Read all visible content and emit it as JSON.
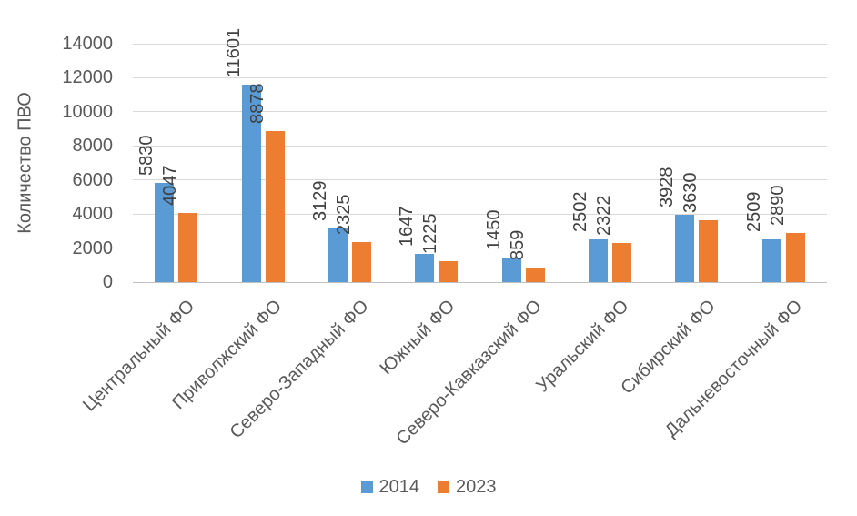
{
  "chart_data": {
    "type": "bar",
    "title": "",
    "xlabel": "",
    "ylabel": "Количество ПВО",
    "ylim": [
      0,
      14000
    ],
    "yticks": [
      0,
      2000,
      4000,
      6000,
      8000,
      10000,
      12000,
      14000
    ],
    "grid": true,
    "legend_position": "bottom",
    "x_labels_rotation": 45,
    "data_labels_rotation": 90,
    "categories": [
      "Центральный ФО",
      "Приволжский ФО",
      "Северо-Западный ФО",
      "Южный ФО",
      "Северо-Кавказский ФО",
      "Уральский ФО",
      "Сибирский ФО",
      "Дальневосточный ФО"
    ],
    "series": [
      {
        "name": "2014",
        "color": "#5B9BD5",
        "values": [
          5830,
          11601,
          3129,
          1647,
          1450,
          2502,
          3928,
          2509
        ]
      },
      {
        "name": "2023",
        "color": "#ED7D31",
        "values": [
          4047,
          8878,
          2325,
          1225,
          859,
          2322,
          3630,
          2890
        ]
      }
    ],
    "colors": {
      "gridline": "#D9D9D9",
      "axis_line": "#BFBFBF",
      "tick_text": "#595959",
      "data_label_text": "#404040"
    }
  }
}
